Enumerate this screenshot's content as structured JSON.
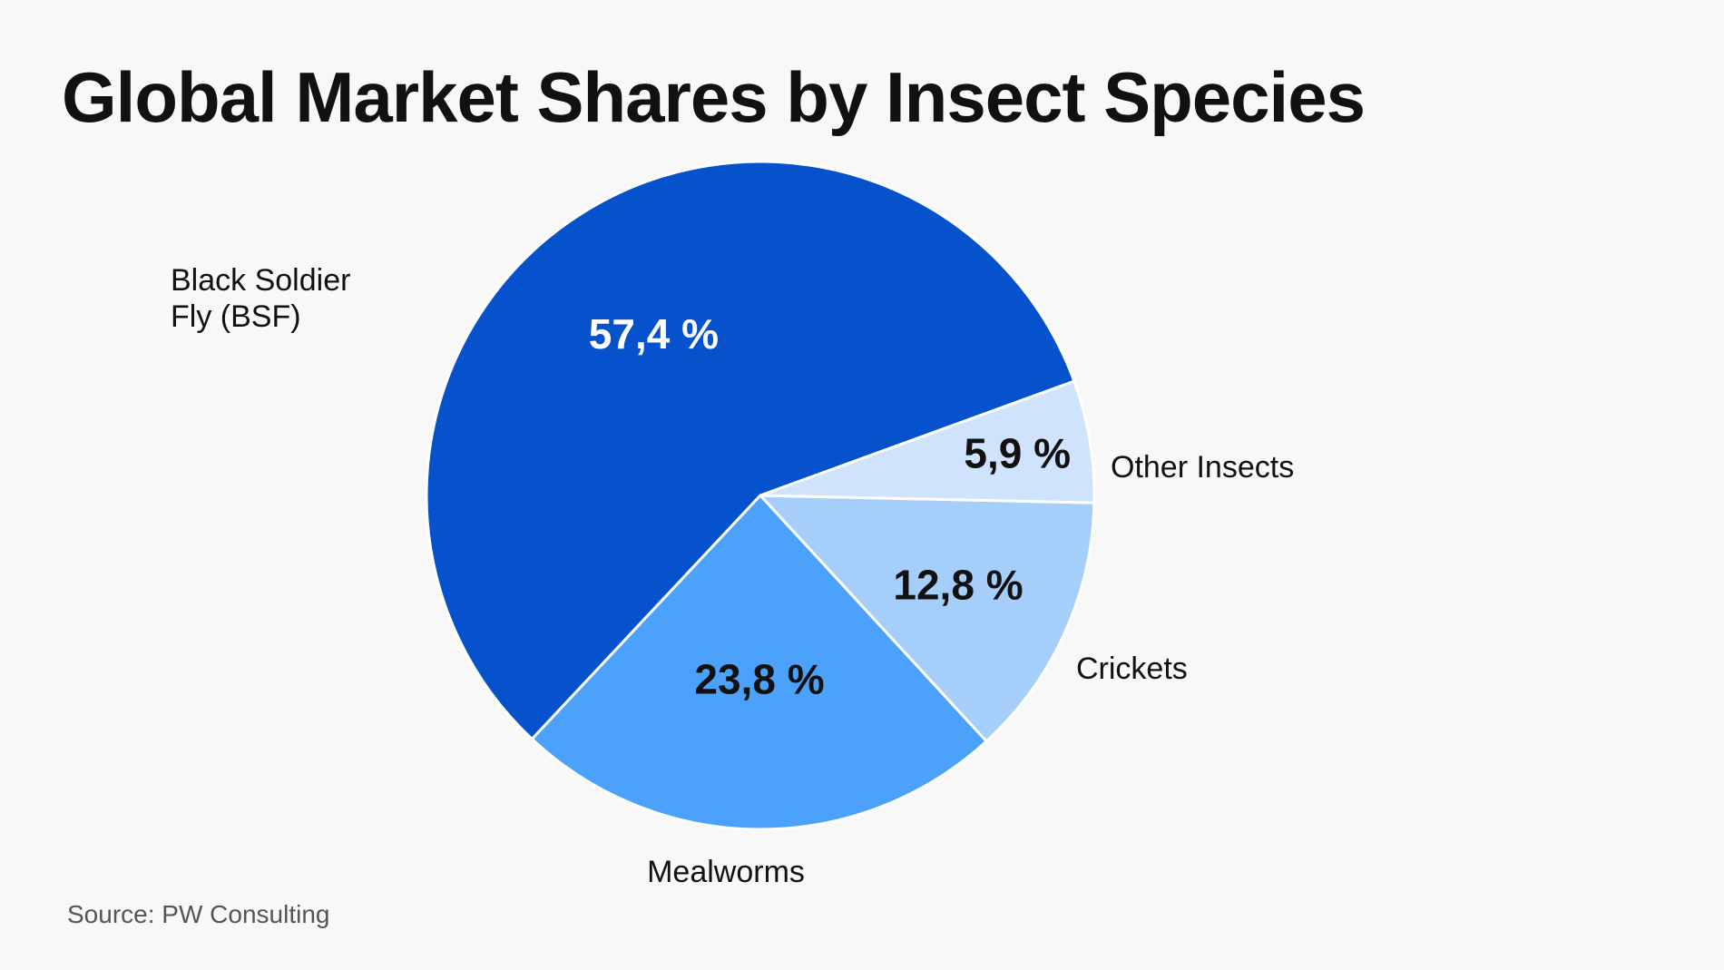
{
  "chart_data": {
    "type": "pie",
    "title": "Global Market Shares by Insect Species",
    "source": "Source: PW Consulting",
    "slices": [
      {
        "name": [
          "Black Soldier",
          "Fly (BSF)"
        ],
        "value": 57.4,
        "label": "57,4 %",
        "color": "#0552cc",
        "text_color": "#ffffff"
      },
      {
        "name": [
          "Mealworms"
        ],
        "value": 23.8,
        "label": "23,8 %",
        "color": "#4ca2fb",
        "text_color": "#111111"
      },
      {
        "name": [
          "Crickets"
        ],
        "value": 12.8,
        "label": "12,8 %",
        "color": "#a5cefb",
        "text_color": "#111111"
      },
      {
        "name": [
          "Other Insects"
        ],
        "value": 5.9,
        "label": "5,9 %",
        "color": "#cfe3fc",
        "text_color": "#111111"
      }
    ]
  }
}
